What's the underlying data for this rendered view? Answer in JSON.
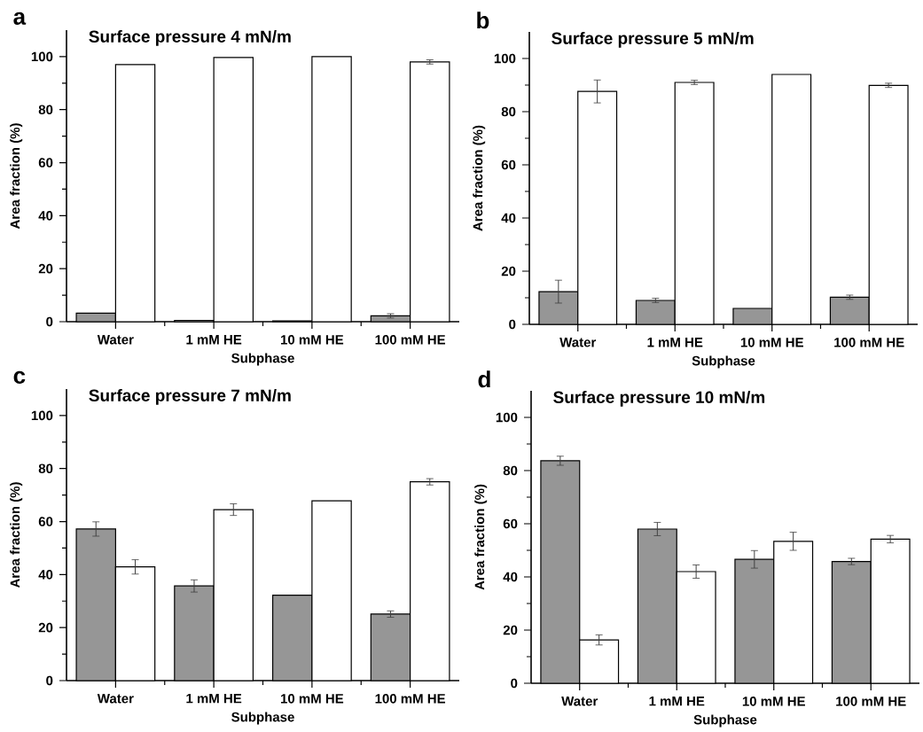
{
  "chart_data": [
    {
      "type": "bar",
      "title": "Surface pressure 4 mN/m",
      "xlabel": "Subphase",
      "ylabel": "Area fraction (%)",
      "annotations": [
        "a"
      ],
      "categories": [
        "Water",
        "1 mM HE",
        "10 mM HE",
        "100 mM HE"
      ],
      "series": [
        {
          "color": "#969696",
          "values": [
            3.2,
            0.5,
            0.3,
            2.2
          ],
          "errors": [
            null,
            null,
            null,
            0.8
          ]
        },
        {
          "color": "#ffffff",
          "values": [
            97,
            99.7,
            100,
            98
          ],
          "errors": [
            null,
            null,
            null,
            0.8
          ]
        }
      ],
      "ylim": [
        0,
        110
      ],
      "yticks": [
        0,
        20,
        40,
        60,
        80,
        100
      ]
    },
    {
      "type": "bar",
      "title": "Surface pressure 5 mN/m",
      "xlabel": "Subphase",
      "ylabel": "Area fraction (%)",
      "annotations": [
        "b"
      ],
      "categories": [
        "Water",
        "1 mM HE",
        "10 mM HE",
        "100 mM HE"
      ],
      "series": [
        {
          "color": "#969696",
          "values": [
            12.3,
            9,
            6,
            10.2
          ],
          "errors": [
            4.3,
            0.8,
            null,
            0.8
          ]
        },
        {
          "color": "#ffffff",
          "values": [
            87.6,
            91,
            94,
            89.9
          ],
          "errors": [
            4.3,
            0.8,
            null,
            0.8
          ]
        }
      ],
      "ylim": [
        0,
        110
      ],
      "yticks": [
        0,
        20,
        40,
        60,
        80,
        100
      ]
    },
    {
      "type": "bar",
      "title": "Surface pressure 7 mN/m",
      "xlabel": "Subphase",
      "ylabel": "Area fraction (%)",
      "annotations": [
        "c"
      ],
      "categories": [
        "Water",
        "1 mM HE",
        "10 mM HE",
        "100 mM HE"
      ],
      "series": [
        {
          "color": "#969696",
          "values": [
            57.2,
            35.7,
            32.2,
            25.1
          ],
          "errors": [
            2.7,
            2.3,
            null,
            1.2
          ]
        },
        {
          "color": "#ffffff",
          "values": [
            42.9,
            64.5,
            67.8,
            75
          ],
          "errors": [
            2.7,
            2.2,
            null,
            1.2
          ]
        }
      ],
      "ylim": [
        0,
        110
      ],
      "yticks": [
        0,
        20,
        40,
        60,
        80,
        100
      ]
    },
    {
      "type": "bar",
      "title": "Surface pressure 10 mN/m",
      "xlabel": "Subphase",
      "ylabel": "Area fraction (%)",
      "annotations": [
        "d"
      ],
      "categories": [
        "Water",
        "1 mM HE",
        "10 mM HE",
        "100 mM HE"
      ],
      "series": [
        {
          "color": "#969696",
          "values": [
            83.7,
            58,
            46.6,
            45.8
          ],
          "errors": [
            1.7,
            2.5,
            3.3,
            1.2
          ]
        },
        {
          "color": "#ffffff",
          "values": [
            16.3,
            42,
            53.4,
            54.2
          ],
          "errors": [
            1.9,
            2.5,
            3.4,
            1.4
          ]
        }
      ],
      "ylim": [
        0,
        110
      ],
      "yticks": [
        0,
        20,
        40,
        60,
        80,
        100
      ]
    }
  ]
}
